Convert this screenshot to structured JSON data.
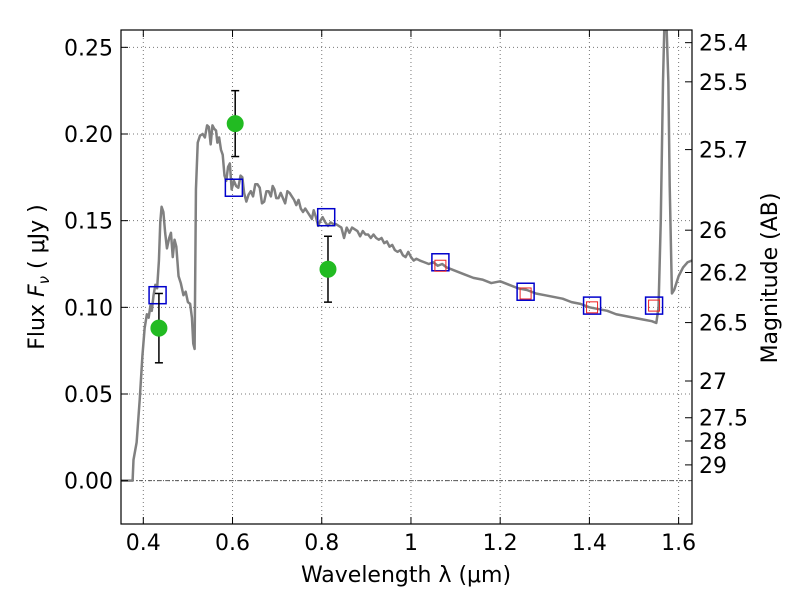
{
  "chart_data": {
    "type": "scatter",
    "xlabel": "Wavelength  λ (μm)",
    "ylabel": "Flux  F_ν  ( μJy )",
    "ylabel_parts": {
      "prefix": "Flux  ",
      "symbol": "F",
      "subscript": "ν",
      "suffix": "  ( μJy )"
    },
    "y2label": "Magnitude (AB)",
    "xlim": [
      0.35,
      1.63
    ],
    "ylim": [
      -0.025,
      0.26
    ],
    "x_ticks": [
      {
        "value": 0.4,
        "label": "0.4"
      },
      {
        "value": 0.6,
        "label": "0.6"
      },
      {
        "value": 0.8,
        "label": "0.8"
      },
      {
        "value": 1.0,
        "label": "1"
      },
      {
        "value": 1.2,
        "label": "1.2"
      },
      {
        "value": 1.4,
        "label": "1.4"
      },
      {
        "value": 1.6,
        "label": "1.6"
      }
    ],
    "y_ticks": [
      {
        "value": 0.0,
        "label": "0.00"
      },
      {
        "value": 0.05,
        "label": "0.05"
      },
      {
        "value": 0.1,
        "label": "0.10"
      },
      {
        "value": 0.15,
        "label": "0.15"
      },
      {
        "value": 0.2,
        "label": "0.20"
      },
      {
        "value": 0.25,
        "label": "0.25"
      }
    ],
    "y2_ticks": [
      {
        "flux": 0.2527,
        "label": "25.4"
      },
      {
        "flux": 0.2301,
        "label": "25.5"
      },
      {
        "flux": 0.191,
        "label": "25.7"
      },
      {
        "flux": 0.1445,
        "label": "26"
      },
      {
        "flux": 0.1201,
        "label": "26.2"
      },
      {
        "flux": 0.0912,
        "label": "26.5"
      },
      {
        "flux": 0.0575,
        "label": "27"
      },
      {
        "flux": 0.0363,
        "label": "27.5"
      },
      {
        "flux": 0.0229,
        "label": "28"
      },
      {
        "flux": 0.0091,
        "label": "29"
      }
    ],
    "grid": true,
    "zero_line": true,
    "colors": {
      "sed": "#808080",
      "observed": "#22bb22",
      "model_blue": "#0000cc",
      "model_red": "#ee2222",
      "error_bar": "#000000",
      "grid": "#777777"
    },
    "series": [
      {
        "type": "line",
        "points": [
          [
            0.35,
            0.0
          ],
          [
            0.373,
            0.0
          ],
          [
            0.376,
            0.0
          ],
          [
            0.378,
            0.012
          ],
          [
            0.385,
            0.022
          ],
          [
            0.392,
            0.047
          ],
          [
            0.398,
            0.072
          ],
          [
            0.403,
            0.088
          ],
          [
            0.408,
            0.096
          ],
          [
            0.412,
            0.094
          ],
          [
            0.416,
            0.101
          ],
          [
            0.419,
            0.098
          ],
          [
            0.423,
            0.107
          ],
          [
            0.427,
            0.113
          ],
          [
            0.431,
            0.111
          ],
          [
            0.435,
            0.127
          ],
          [
            0.438,
            0.149
          ],
          [
            0.441,
            0.158
          ],
          [
            0.445,
            0.155
          ],
          [
            0.449,
            0.143
          ],
          [
            0.453,
            0.134
          ],
          [
            0.458,
            0.14
          ],
          [
            0.462,
            0.143
          ],
          [
            0.466,
            0.129
          ],
          [
            0.47,
            0.139
          ],
          [
            0.474,
            0.135
          ],
          [
            0.479,
            0.118
          ],
          [
            0.484,
            0.114
          ],
          [
            0.49,
            0.107
          ],
          [
            0.495,
            0.109
          ],
          [
            0.5,
            0.103
          ],
          [
            0.505,
            0.102
          ],
          [
            0.509,
            0.094
          ],
          [
            0.512,
            0.079
          ],
          [
            0.515,
            0.076
          ],
          [
            0.518,
            0.168
          ],
          [
            0.522,
            0.195
          ],
          [
            0.527,
            0.199
          ],
          [
            0.533,
            0.2
          ],
          [
            0.538,
            0.198
          ],
          [
            0.543,
            0.205
          ],
          [
            0.547,
            0.204
          ],
          [
            0.551,
            0.194
          ],
          [
            0.555,
            0.205
          ],
          [
            0.559,
            0.203
          ],
          [
            0.563,
            0.202
          ],
          [
            0.566,
            0.195
          ],
          [
            0.57,
            0.198
          ],
          [
            0.574,
            0.191
          ],
          [
            0.578,
            0.188
          ],
          [
            0.582,
            0.176
          ],
          [
            0.586,
            0.173
          ],
          [
            0.59,
            0.181
          ],
          [
            0.594,
            0.183
          ],
          [
            0.598,
            0.168
          ],
          [
            0.603,
            0.173
          ],
          [
            0.608,
            0.17
          ],
          [
            0.613,
            0.169
          ],
          [
            0.618,
            0.176
          ],
          [
            0.622,
            0.175
          ],
          [
            0.626,
            0.166
          ],
          [
            0.631,
            0.161
          ],
          [
            0.636,
            0.165
          ],
          [
            0.641,
            0.167
          ],
          [
            0.646,
            0.164
          ],
          [
            0.651,
            0.171
          ],
          [
            0.656,
            0.171
          ],
          [
            0.661,
            0.169
          ],
          [
            0.666,
            0.16
          ],
          [
            0.671,
            0.161
          ],
          [
            0.676,
            0.167
          ],
          [
            0.681,
            0.167
          ],
          [
            0.686,
            0.164
          ],
          [
            0.69,
            0.17
          ],
          [
            0.694,
            0.168
          ],
          [
            0.698,
            0.163
          ],
          [
            0.703,
            0.163
          ],
          [
            0.708,
            0.166
          ],
          [
            0.713,
            0.163
          ],
          [
            0.718,
            0.16
          ],
          [
            0.723,
            0.167
          ],
          [
            0.728,
            0.166
          ],
          [
            0.733,
            0.164
          ],
          [
            0.738,
            0.162
          ],
          [
            0.743,
            0.159
          ],
          [
            0.748,
            0.162
          ],
          [
            0.753,
            0.157
          ],
          [
            0.758,
            0.155
          ],
          [
            0.763,
            0.157
          ],
          [
            0.768,
            0.155
          ],
          [
            0.773,
            0.153
          ],
          [
            0.778,
            0.151
          ],
          [
            0.782,
            0.156
          ],
          [
            0.787,
            0.152
          ],
          [
            0.792,
            0.147
          ],
          [
            0.797,
            0.15
          ],
          [
            0.802,
            0.152
          ],
          [
            0.808,
            0.149
          ],
          [
            0.814,
            0.147
          ],
          [
            0.82,
            0.149
          ],
          [
            0.826,
            0.148
          ],
          [
            0.832,
            0.148
          ],
          [
            0.838,
            0.147
          ],
          [
            0.844,
            0.146
          ],
          [
            0.85,
            0.14
          ],
          [
            0.856,
            0.146
          ],
          [
            0.862,
            0.143
          ],
          [
            0.868,
            0.146
          ],
          [
            0.874,
            0.145
          ],
          [
            0.88,
            0.144
          ],
          [
            0.886,
            0.141
          ],
          [
            0.892,
            0.144
          ],
          [
            0.898,
            0.142
          ],
          [
            0.904,
            0.142
          ],
          [
            0.91,
            0.14
          ],
          [
            0.916,
            0.142
          ],
          [
            0.922,
            0.14
          ],
          [
            0.928,
            0.139
          ],
          [
            0.934,
            0.14
          ],
          [
            0.94,
            0.137
          ],
          [
            0.946,
            0.138
          ],
          [
            0.952,
            0.135
          ],
          [
            0.958,
            0.136
          ],
          [
            0.964,
            0.133
          ],
          [
            0.97,
            0.132
          ],
          [
            0.976,
            0.133
          ],
          [
            0.982,
            0.13
          ],
          [
            0.988,
            0.129
          ],
          [
            0.994,
            0.132
          ],
          [
            1.0,
            0.129
          ],
          [
            1.006,
            0.127
          ],
          [
            1.012,
            0.128
          ],
          [
            1.02,
            0.127
          ],
          [
            1.03,
            0.126
          ],
          [
            1.04,
            0.125
          ],
          [
            1.05,
            0.126
          ],
          [
            1.06,
            0.124
          ],
          [
            1.07,
            0.125
          ],
          [
            1.08,
            0.123
          ],
          [
            1.09,
            0.122
          ],
          [
            1.1,
            0.121
          ],
          [
            1.12,
            0.119
          ],
          [
            1.14,
            0.117
          ],
          [
            1.16,
            0.116
          ],
          [
            1.18,
            0.114
          ],
          [
            1.2,
            0.115
          ],
          [
            1.22,
            0.113
          ],
          [
            1.24,
            0.111
          ],
          [
            1.26,
            0.11
          ],
          [
            1.28,
            0.108
          ],
          [
            1.3,
            0.107
          ],
          [
            1.32,
            0.106
          ],
          [
            1.34,
            0.105
          ],
          [
            1.36,
            0.103
          ],
          [
            1.38,
            0.102
          ],
          [
            1.4,
            0.1
          ],
          [
            1.42,
            0.099
          ],
          [
            1.44,
            0.098
          ],
          [
            1.46,
            0.096
          ],
          [
            1.48,
            0.095
          ],
          [
            1.5,
            0.094
          ],
          [
            1.52,
            0.093
          ],
          [
            1.54,
            0.092
          ],
          [
            1.55,
            0.091
          ],
          [
            1.555,
            0.1
          ],
          [
            1.56,
            0.15
          ],
          [
            1.565,
            0.23
          ],
          [
            1.568,
            0.262
          ],
          [
            1.573,
            0.262
          ],
          [
            1.577,
            0.23
          ],
          [
            1.58,
            0.17
          ],
          [
            1.585,
            0.108
          ],
          [
            1.59,
            0.11
          ],
          [
            1.6,
            0.118
          ],
          [
            1.61,
            0.123
          ],
          [
            1.62,
            0.126
          ],
          [
            1.63,
            0.127
          ]
        ]
      },
      {
        "type": "errorbar",
        "marker": "circle",
        "points": [
          {
            "x": 0.435,
            "y": 0.088,
            "yerr": 0.02
          },
          {
            "x": 0.606,
            "y": 0.206,
            "yerr": 0.019
          },
          {
            "x": 0.814,
            "y": 0.122,
            "yerr": 0.019
          }
        ]
      },
      {
        "type": "scatter",
        "marker": "square",
        "points": [
          {
            "x": 0.432,
            "y": 0.107
          },
          {
            "x": 0.603,
            "y": 0.169
          },
          {
            "x": 0.81,
            "y": 0.152
          },
          {
            "x": 1.066,
            "y": 0.126
          },
          {
            "x": 1.257,
            "y": 0.109
          },
          {
            "x": 1.406,
            "y": 0.101
          },
          {
            "x": 1.545,
            "y": 0.101
          }
        ]
      },
      {
        "type": "scatter",
        "marker": "square-small",
        "points": [
          {
            "x": 1.066,
            "y": 0.124
          },
          {
            "x": 1.257,
            "y": 0.108
          },
          {
            "x": 1.406,
            "y": 0.1
          },
          {
            "x": 1.545,
            "y": 0.101
          }
        ]
      }
    ]
  }
}
